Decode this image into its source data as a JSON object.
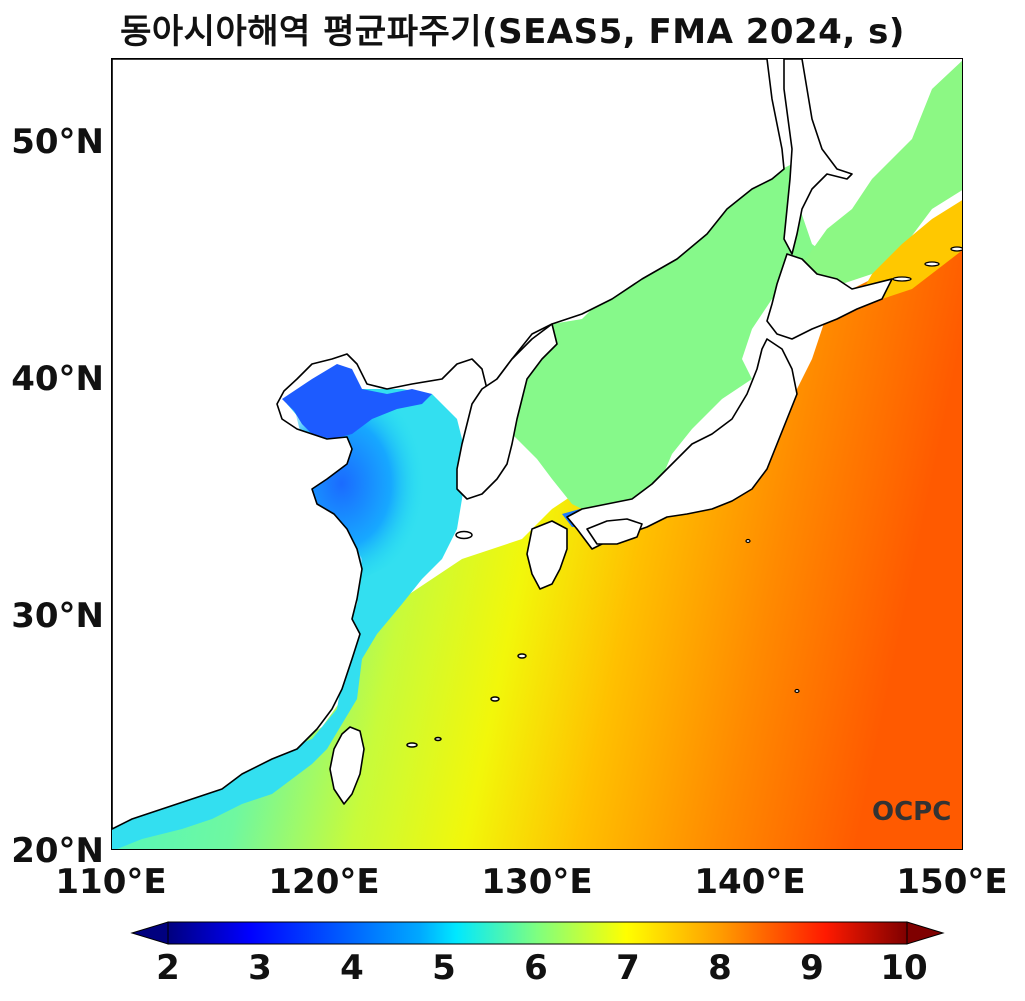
{
  "title": "동아시아해역 평균파주기(SEAS5, FMA 2024, s)",
  "map": {
    "lon_range": [
      110,
      150
    ],
    "lat_range": [
      20,
      53.5
    ],
    "lat_ticks": [
      "20°N",
      "30°N",
      "40°N",
      "50°N"
    ],
    "lon_ticks": [
      "110°E",
      "120°E",
      "130°E",
      "140°E",
      "150°E"
    ],
    "variable": "mean wave period",
    "units": "s"
  },
  "colorbar": {
    "colormap": "jet",
    "min": 2,
    "max": 10,
    "extend": "both",
    "tick_labels": [
      "2",
      "3",
      "4",
      "5",
      "6",
      "7",
      "8",
      "9",
      "10"
    ],
    "colors": [
      "#00007f",
      "#0000ff",
      "#007fff",
      "#00ffff",
      "#7fff7f",
      "#ffff00",
      "#ff7f00",
      "#ff0000",
      "#7f0000"
    ]
  },
  "watermark": "OCPC"
}
